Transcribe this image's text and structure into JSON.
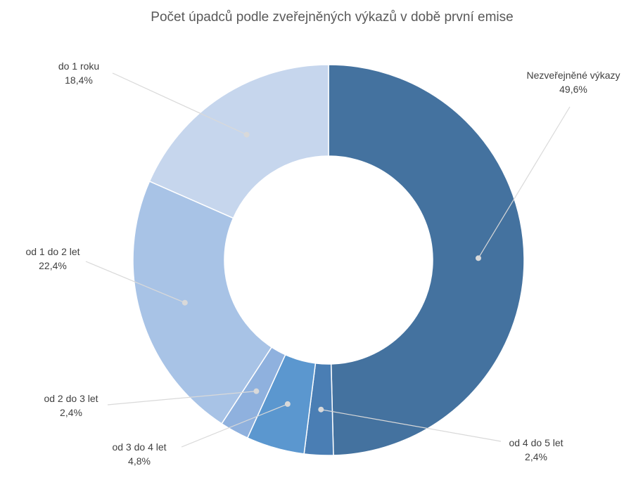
{
  "chart_data": {
    "type": "pie",
    "variant": "donut",
    "title": "Počet úpadců podle zveřejněných výkazů v době první emise",
    "categories": [
      "Nezveřejněné výkazy",
      "od 4 do 5 let",
      "od 3 do 4 let",
      "od 2 do 3 let",
      "od 1 do 2 let",
      "do 1 roku"
    ],
    "values": [
      49.6,
      2.4,
      4.8,
      2.4,
      22.4,
      18.4
    ],
    "value_labels": [
      "49,6%",
      "2,4%",
      "4,8%",
      "2,4%",
      "22,4%",
      "18,4%"
    ],
    "unit": "%",
    "colors": [
      "#44729f",
      "#4a7eb4",
      "#5b97cf",
      "#8fb1de",
      "#a8c3e6",
      "#c6d6ed"
    ],
    "legend": "none",
    "start_angle": "12 o'clock",
    "direction": "clockwise"
  }
}
